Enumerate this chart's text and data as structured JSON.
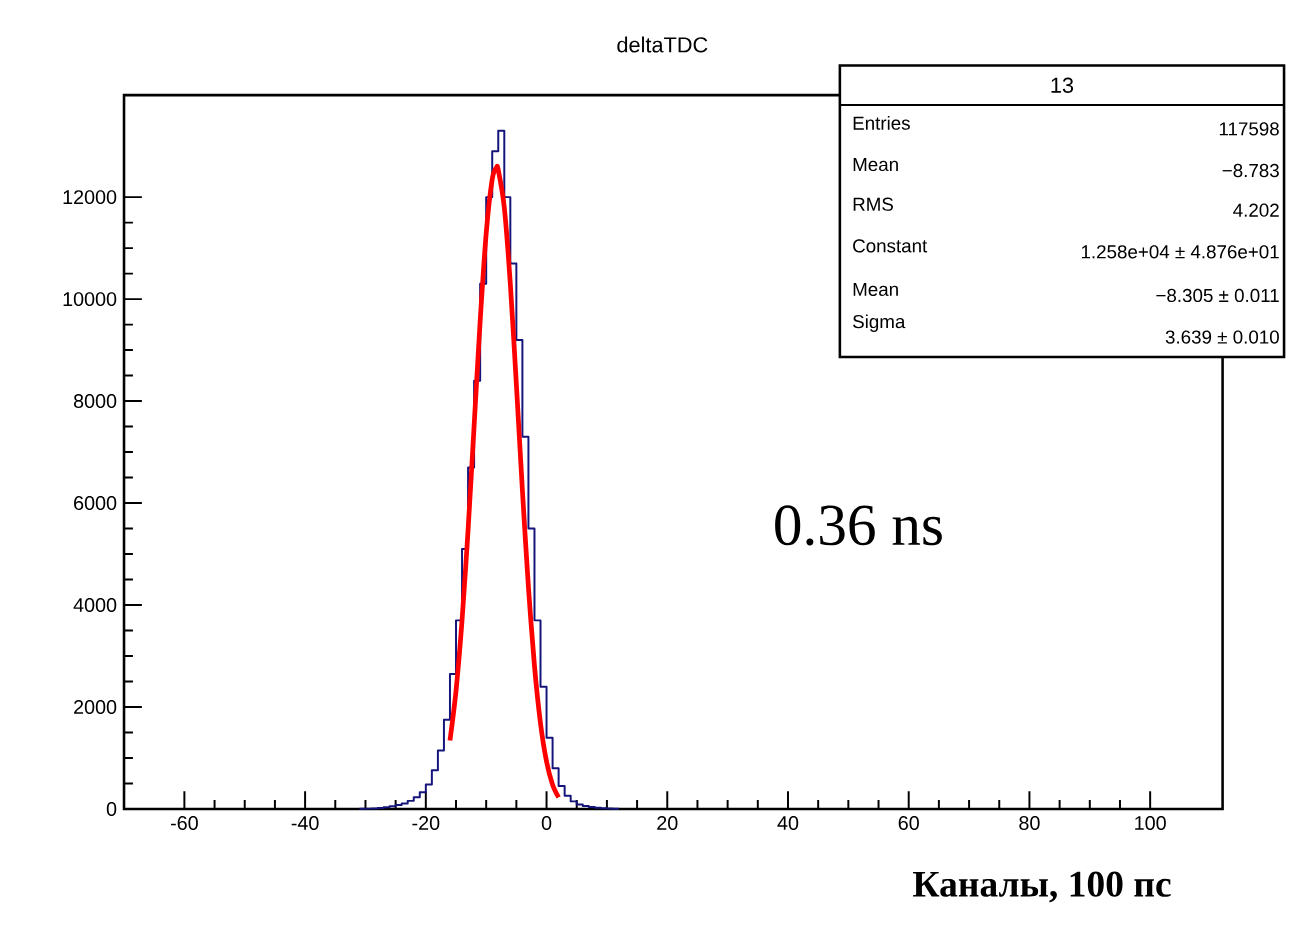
{
  "chart_data": {
    "type": "histogram",
    "title": "deltaTDC",
    "xlabel": "Каналы, 100 пс",
    "bins": [
      -31,
      -30,
      -29,
      -28,
      -27,
      -26,
      -25,
      -24,
      -23,
      -22,
      -21,
      -20,
      -19,
      -18,
      -17,
      -16,
      -15,
      -14,
      -13,
      -12,
      -11,
      -10,
      -9,
      -8,
      -7,
      -6,
      -5,
      -4,
      -3,
      -2,
      -1,
      0,
      1,
      2,
      3,
      4,
      5,
      6,
      7,
      8,
      9,
      10,
      11,
      12
    ],
    "values": [
      5,
      8,
      12,
      20,
      35,
      55,
      80,
      110,
      160,
      230,
      330,
      480,
      760,
      1150,
      1750,
      2650,
      3700,
      5100,
      6700,
      8400,
      10300,
      12000,
      12900,
      13300,
      12000,
      10700,
      9200,
      7300,
      5500,
      3700,
      2400,
      1400,
      800,
      450,
      260,
      150,
      90,
      60,
      40,
      25,
      15,
      10,
      6
    ],
    "color": "#14147a",
    "series": [
      {
        "type": "line",
        "color": "#ff0000",
        "x": [
          -16,
          -15,
          -14,
          -13,
          -12,
          -11,
          -10,
          -9,
          -8.3,
          -8,
          -7,
          -6,
          -5,
          -4,
          -3,
          -2,
          -1,
          0,
          1,
          2
        ],
        "values": [
          1345,
          2316,
          3700,
          5475,
          7514,
          9563,
          11288,
          12353,
          12580,
          12536,
          11797,
          10293,
          8330,
          6248,
          4347,
          2806,
          1678,
          931,
          478,
          228
        ]
      }
    ],
    "xlim": [
      -70,
      112
    ],
    "ylim": [
      0,
      14000
    ],
    "xticks": [
      -60,
      -40,
      -20,
      0,
      20,
      40,
      60,
      80,
      100
    ],
    "yticks": [
      0,
      2000,
      4000,
      6000,
      8000,
      10000,
      12000
    ],
    "annotations": [
      "13",
      "Entries",
      "117598",
      "Mean",
      "−8.783",
      "RMS",
      "4.202",
      "Constant",
      "1.258e+04 ± 4.876e+01",
      "Mean",
      "−8.305 ± 0.011",
      "Sigma",
      "3.639 ± 0.010",
      "0.36 ns"
    ]
  }
}
